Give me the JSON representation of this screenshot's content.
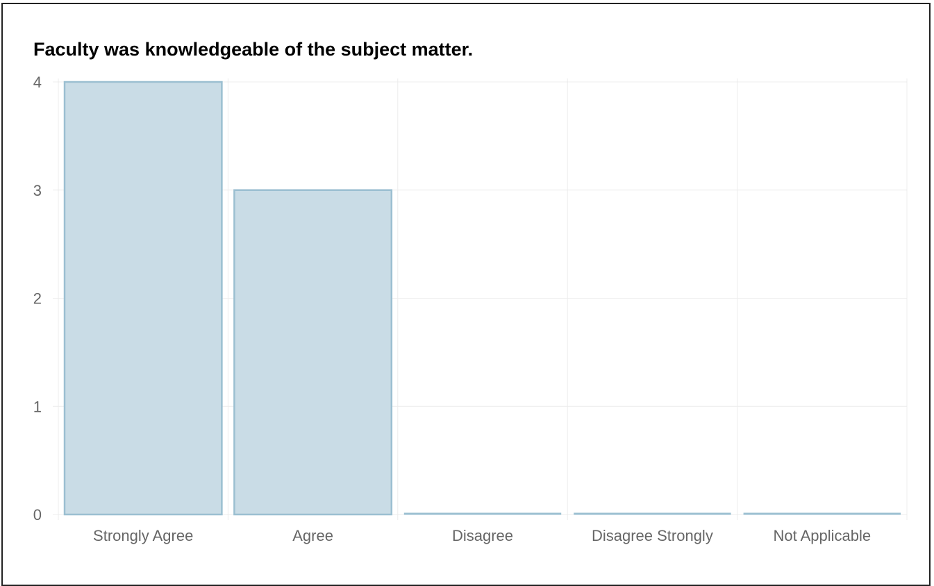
{
  "chart_data": {
    "type": "bar",
    "title": "Faculty was knowledgeable of the subject matter.",
    "categories": [
      "Strongly Agree",
      "Agree",
      "Disagree",
      "Disagree Strongly",
      "Not Applicable"
    ],
    "values": [
      4,
      3,
      0,
      0,
      0
    ],
    "ylim": [
      0,
      4
    ],
    "yticks": [
      "0",
      "1",
      "2",
      "3",
      "4"
    ],
    "xlabel": "",
    "ylabel": "",
    "grid": true,
    "bar_fill": "#c9dce6",
    "bar_stroke": "#9bbfd1",
    "grid_color": "#ececec"
  }
}
